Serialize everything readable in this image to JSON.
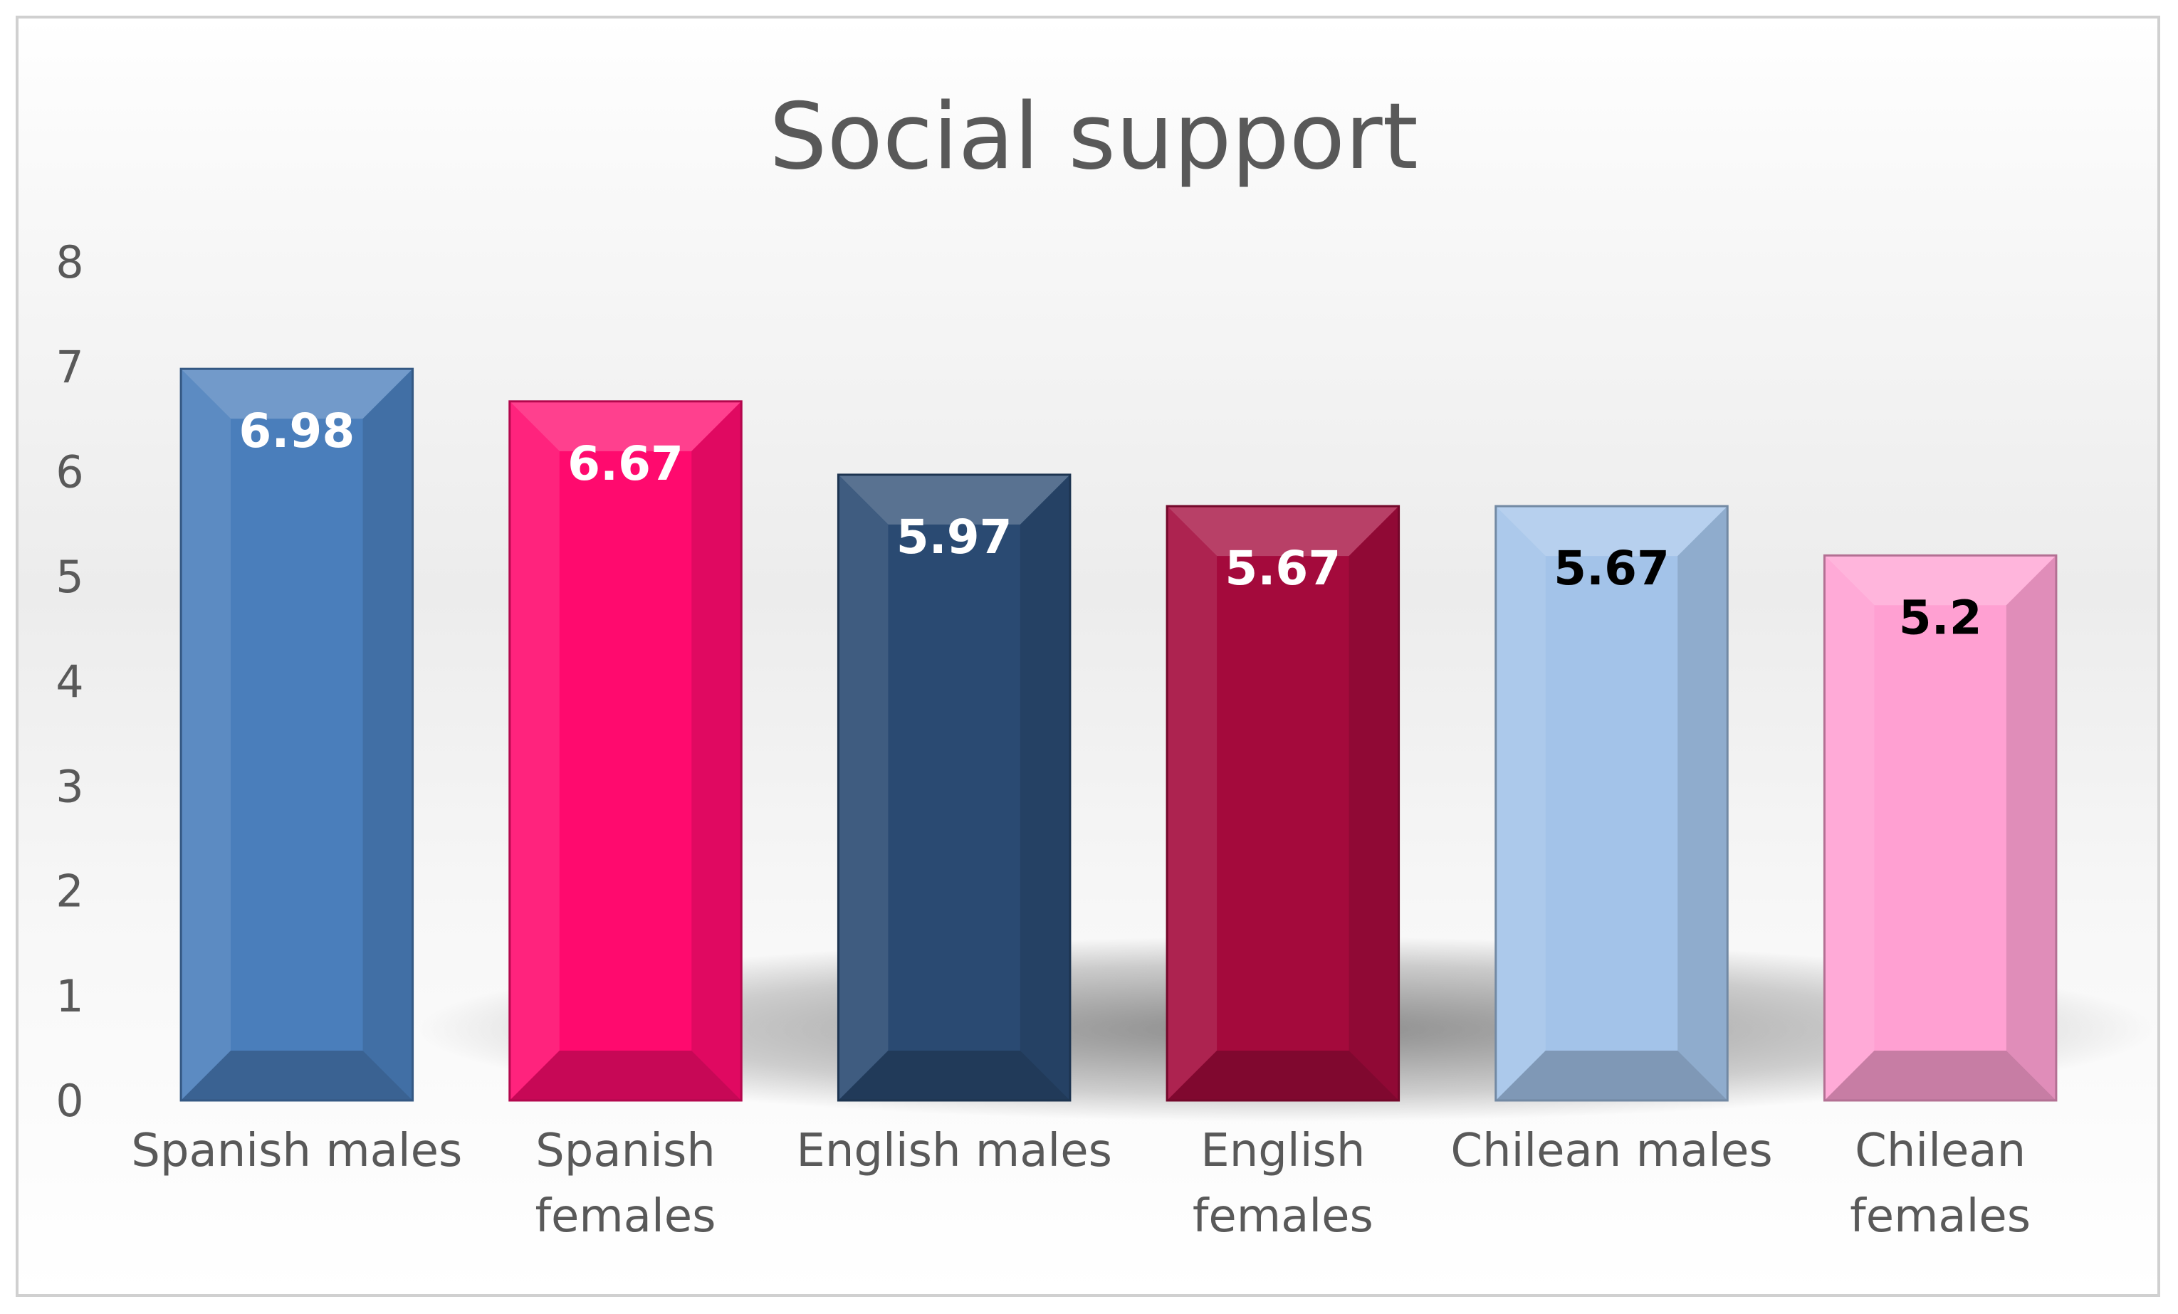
{
  "chart_data": {
    "type": "bar",
    "title": "Social support",
    "xlabel": "",
    "ylabel": "",
    "ylim": [
      0,
      8
    ],
    "yticks": [
      0,
      1,
      2,
      3,
      4,
      5,
      6,
      7,
      8
    ],
    "grid": false,
    "legend": "none",
    "categories": [
      [
        "Spanish males"
      ],
      [
        "Spanish",
        "females"
      ],
      [
        "English males"
      ],
      [
        "English",
        "females"
      ],
      [
        "Chilean males"
      ],
      [
        "Chilean",
        "females"
      ]
    ],
    "values": [
      6.98,
      6.67,
      5.97,
      5.67,
      5.67,
      5.2
    ],
    "value_labels": [
      "6.98",
      "6.67",
      "5.97",
      "5.67",
      "5.67",
      "5.2"
    ],
    "colors": [
      "#4a7ebb",
      "#ff0a6e",
      "#2a4a72",
      "#a40a3c",
      "#a3c3e9",
      "#ffa0d2"
    ],
    "label_colors": [
      "#ffffff",
      "#ffffff",
      "#ffffff",
      "#ffffff",
      "#000000",
      "#000000"
    ]
  }
}
